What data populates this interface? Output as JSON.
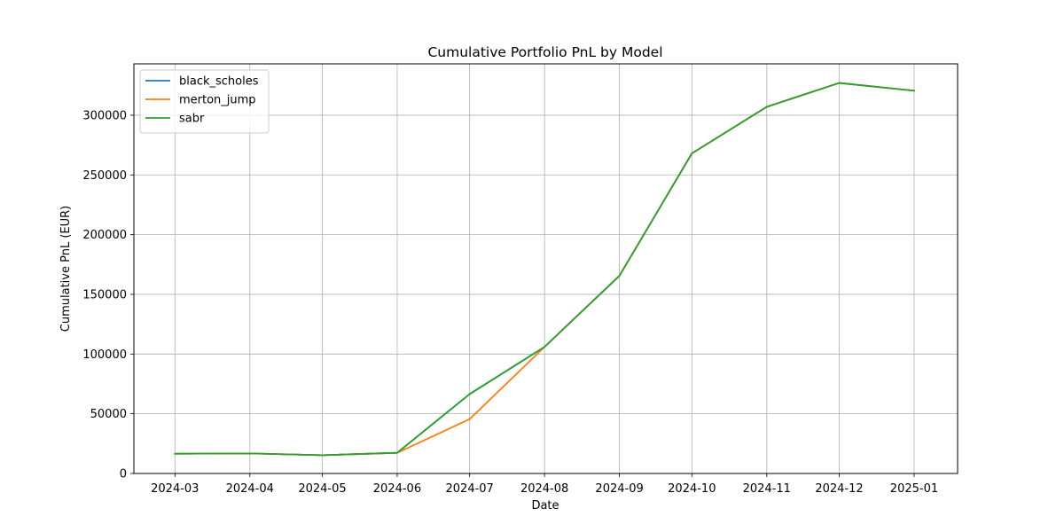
{
  "chart_data": {
    "type": "line",
    "title": "Cumulative Portfolio PnL by Model",
    "xlabel": "Date",
    "ylabel": "Cumulative PnL (EUR)",
    "x_ticks": [
      "2024-03",
      "2024-04",
      "2024-05",
      "2024-06",
      "2024-07",
      "2024-08",
      "2024-09",
      "2024-10",
      "2024-11",
      "2024-12",
      "2025-01"
    ],
    "x": [
      "2024-03-01",
      "2024-04-01",
      "2024-05-01",
      "2024-06-01",
      "2024-07-01",
      "2024-08-01",
      "2024-09-01",
      "2024-10-01",
      "2024-11-01",
      "2024-12-01",
      "2025-01-01"
    ],
    "xlim": [
      "2024-02-13",
      "2025-01-19"
    ],
    "ylim": [
      0,
      343000
    ],
    "y_ticks": [
      0,
      50000,
      100000,
      150000,
      200000,
      250000,
      300000
    ],
    "grid": true,
    "legend_position": "upper-left",
    "series": [
      {
        "name": "black_scholes",
        "color": "#1f77b4",
        "values": [
          16500,
          16800,
          15300,
          17300,
          66500,
          106000,
          165500,
          268000,
          307000,
          327000,
          320500
        ]
      },
      {
        "name": "merton_jump",
        "color": "#ff7f0e",
        "values": [
          16500,
          16800,
          15300,
          17300,
          45500,
          106000,
          165500,
          268000,
          307000,
          327000,
          320500
        ]
      },
      {
        "name": "sabr",
        "color": "#2ca02c",
        "values": [
          16500,
          16800,
          15300,
          17300,
          66500,
          106000,
          165500,
          268000,
          307000,
          327000,
          320500
        ]
      }
    ]
  }
}
